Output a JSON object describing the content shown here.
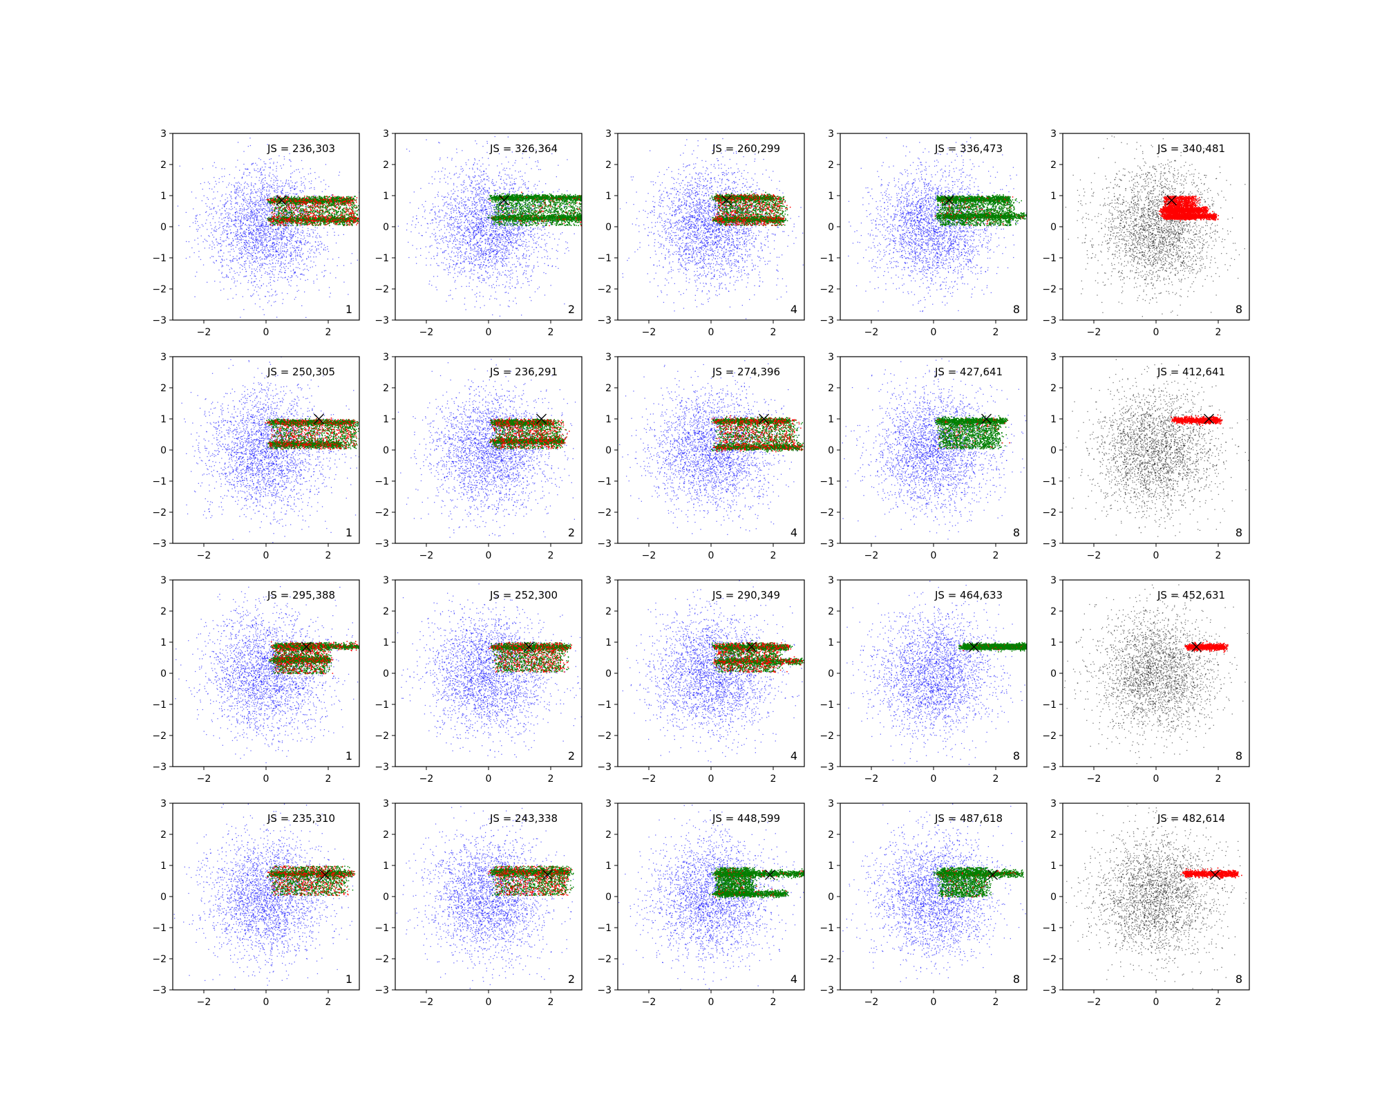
{
  "figure": {
    "background": "#ffffff"
  },
  "styles": {
    "background_colors": {
      "blue": "#0000ff",
      "black": "#000000"
    },
    "cluster_colors": {
      "red": "#ff0000",
      "green": "#008000"
    },
    "marker_color": "#000000"
  },
  "chart_data": [
    {
      "type": "scatter",
      "panel": [
        1,
        1
      ],
      "annotation": "JS = 236,303",
      "corner_label": "1",
      "background_color": "blue",
      "marker": {
        "x": 0.5,
        "y": 0.85
      },
      "clusters": {
        "x_start": 0.1,
        "y_band": [
          0.05,
          1.0
        ],
        "x_end": 2.8,
        "bands": [
          {
            "y": 0.85,
            "x_end": 2.7
          },
          {
            "y": 0.25,
            "x_end": 2.9
          }
        ],
        "mix": "both"
      },
      "xlim": [
        -3,
        3
      ],
      "ylim": [
        -3,
        3
      ],
      "xticks": [
        -2,
        0,
        2
      ],
      "yticks": [
        -3,
        -2,
        -1,
        0,
        1,
        2,
        3
      ]
    },
    {
      "type": "scatter",
      "panel": [
        1,
        2
      ],
      "annotation": "JS = 326,364",
      "corner_label": "2",
      "background_color": "blue",
      "marker": {
        "x": 0.5,
        "y": 0.85
      },
      "clusters": {
        "x_start": 0.1,
        "y_band": [
          0.05,
          1.0
        ],
        "x_end": 3.0,
        "bands": [
          {
            "y": 0.95,
            "x_end": 3.0
          },
          {
            "y": 0.3,
            "x_end": 3.0
          }
        ],
        "mix": "green"
      },
      "xlim": [
        -3,
        3
      ],
      "ylim": [
        -3,
        3
      ],
      "xticks": [
        -2,
        0,
        2
      ],
      "yticks": [
        -3,
        -2,
        -1,
        0,
        1,
        2,
        3
      ]
    },
    {
      "type": "scatter",
      "panel": [
        1,
        3
      ],
      "annotation": "JS = 260,299",
      "corner_label": "4",
      "background_color": "blue",
      "marker": {
        "x": 0.5,
        "y": 0.85
      },
      "clusters": {
        "x_start": 0.1,
        "y_band": [
          0.05,
          1.0
        ],
        "x_end": 2.2,
        "bands": [
          {
            "y": 0.95,
            "x_end": 2.0
          },
          {
            "y": 0.25,
            "x_end": 2.3
          }
        ],
        "mix": "both"
      },
      "xlim": [
        -3,
        3
      ],
      "ylim": [
        -3,
        3
      ],
      "xticks": [
        -2,
        0,
        2
      ],
      "yticks": [
        -3,
        -2,
        -1,
        0,
        1,
        2,
        3
      ]
    },
    {
      "type": "scatter",
      "panel": [
        1,
        4
      ],
      "annotation": "JS = 336,473",
      "corner_label": "8",
      "background_color": "blue",
      "marker": {
        "x": 0.5,
        "y": 0.85
      },
      "clusters": {
        "x_start": 0.1,
        "y_band": [
          0.05,
          1.0
        ],
        "x_end": 2.4,
        "bands": [
          {
            "y": 0.9,
            "x_end": 2.4
          },
          {
            "y": 0.35,
            "x_end": 2.9
          }
        ],
        "mix": "green"
      },
      "xlim": [
        -3,
        3
      ],
      "ylim": [
        -3,
        3
      ],
      "xticks": [
        -2,
        0,
        2
      ],
      "yticks": [
        -3,
        -2,
        -1,
        0,
        1,
        2,
        3
      ]
    },
    {
      "type": "scatter",
      "panel": [
        1,
        5
      ],
      "annotation": "JS = 340,481",
      "corner_label": "8",
      "background_color": "black",
      "marker": {
        "x": 0.5,
        "y": 0.85
      },
      "clusters": {
        "x_start": 0.2,
        "y_band": [
          0.25,
          1.0
        ],
        "x_end": 1.1,
        "bands": [
          {
            "y": 0.55,
            "x_end": 1.6
          },
          {
            "y": 0.35,
            "x_end": 1.9
          }
        ],
        "mix": "red"
      },
      "xlim": [
        -3,
        3
      ],
      "ylim": [
        -3,
        3
      ],
      "xticks": [
        -2,
        0,
        2
      ],
      "yticks": [
        -3,
        -2,
        -1,
        0,
        1,
        2,
        3
      ]
    },
    {
      "type": "scatter",
      "panel": [
        2,
        1
      ],
      "annotation": "JS = 250,305",
      "corner_label": "1",
      "background_color": "blue",
      "marker": {
        "x": 1.7,
        "y": 1.0
      },
      "clusters": {
        "x_start": 0.1,
        "y_band": [
          0.05,
          1.0
        ],
        "x_end": 2.8,
        "bands": [
          {
            "y": 0.9,
            "x_end": 2.8
          },
          {
            "y": 0.2,
            "x_end": 2.4
          }
        ],
        "mix": "both"
      },
      "xlim": [
        -3,
        3
      ],
      "ylim": [
        -3,
        3
      ],
      "xticks": [
        -2,
        0,
        2
      ],
      "yticks": [
        -3,
        -2,
        -1,
        0,
        1,
        2,
        3
      ]
    },
    {
      "type": "scatter",
      "panel": [
        2,
        2
      ],
      "annotation": "JS = 236,291",
      "corner_label": "2",
      "background_color": "blue",
      "marker": {
        "x": 1.7,
        "y": 1.0
      },
      "clusters": {
        "x_start": 0.1,
        "y_band": [
          0.05,
          1.0
        ],
        "x_end": 2.2,
        "bands": [
          {
            "y": 0.9,
            "x_end": 2.0
          },
          {
            "y": 0.3,
            "x_end": 2.4
          }
        ],
        "mix": "both"
      },
      "xlim": [
        -3,
        3
      ],
      "ylim": [
        -3,
        3
      ],
      "xticks": [
        -2,
        0,
        2
      ],
      "yticks": [
        -3,
        -2,
        -1,
        0,
        1,
        2,
        3
      ]
    },
    {
      "type": "scatter",
      "panel": [
        2,
        3
      ],
      "annotation": "JS = 274,396",
      "corner_label": "4",
      "background_color": "blue",
      "marker": {
        "x": 1.7,
        "y": 1.0
      },
      "clusters": {
        "x_start": 0.1,
        "y_band": [
          0.05,
          1.0
        ],
        "x_end": 2.6,
        "bands": [
          {
            "y": 0.95,
            "x_end": 2.5
          },
          {
            "y": 0.1,
            "x_end": 2.9
          }
        ],
        "mix": "both"
      },
      "xlim": [
        -3,
        3
      ],
      "ylim": [
        -3,
        3
      ],
      "xticks": [
        -2,
        0,
        2
      ],
      "yticks": [
        -3,
        -2,
        -1,
        0,
        1,
        2,
        3
      ]
    },
    {
      "type": "scatter",
      "panel": [
        2,
        4
      ],
      "annotation": "JS = 427,641",
      "corner_label": "8",
      "background_color": "blue",
      "marker": {
        "x": 1.7,
        "y": 1.0
      },
      "clusters": {
        "x_start": 0.1,
        "y_band": [
          0.05,
          1.0
        ],
        "x_end": 2.0,
        "bands": [
          {
            "y": 0.95,
            "x_end": 2.3
          }
        ],
        "mix": "green"
      },
      "xlim": [
        -3,
        3
      ],
      "ylim": [
        -3,
        3
      ],
      "xticks": [
        -2,
        0,
        2
      ],
      "yticks": [
        -3,
        -2,
        -1,
        0,
        1,
        2,
        3
      ]
    },
    {
      "type": "scatter",
      "panel": [
        2,
        5
      ],
      "annotation": "JS = 412,641",
      "corner_label": "8",
      "background_color": "black",
      "marker": {
        "x": 1.7,
        "y": 1.0
      },
      "clusters": {
        "x_start": 0.6,
        "y_band": [
          0.95,
          1.0
        ],
        "x_end": 0.6,
        "bands": [
          {
            "y": 0.97,
            "x_end": 2.0
          }
        ],
        "mix": "red"
      },
      "xlim": [
        -3,
        3
      ],
      "ylim": [
        -3,
        3
      ],
      "xticks": [
        -2,
        0,
        2
      ],
      "yticks": [
        -3,
        -2,
        -1,
        0,
        1,
        2,
        3
      ]
    },
    {
      "type": "scatter",
      "panel": [
        3,
        1
      ],
      "annotation": "JS = 295,388",
      "corner_label": "1",
      "background_color": "blue",
      "marker": {
        "x": 1.3,
        "y": 0.85
      },
      "clusters": {
        "x_start": 0.2,
        "y_band": [
          0.0,
          1.0
        ],
        "x_end": 1.8,
        "bands": [
          {
            "y": 0.88,
            "x_end": 3.0
          },
          {
            "y": 0.45,
            "x_end": 2.0
          }
        ],
        "mix": "both"
      },
      "xlim": [
        -3,
        3
      ],
      "ylim": [
        -3,
        3
      ],
      "xticks": [
        -2,
        0,
        2
      ],
      "yticks": [
        -3,
        -2,
        -1,
        0,
        1,
        2,
        3
      ]
    },
    {
      "type": "scatter",
      "panel": [
        3,
        2
      ],
      "annotation": "JS = 252,300",
      "corner_label": "2",
      "background_color": "blue",
      "marker": {
        "x": 1.3,
        "y": 0.85
      },
      "clusters": {
        "x_start": 0.1,
        "y_band": [
          0.05,
          1.0
        ],
        "x_end": 2.3,
        "bands": [
          {
            "y": 0.85,
            "x_end": 2.6
          }
        ],
        "mix": "both"
      },
      "xlim": [
        -3,
        3
      ],
      "ylim": [
        -3,
        3
      ],
      "xticks": [
        -2,
        0,
        2
      ],
      "yticks": [
        -3,
        -2,
        -1,
        0,
        1,
        2,
        3
      ]
    },
    {
      "type": "scatter",
      "panel": [
        3,
        3
      ],
      "annotation": "JS = 290,349",
      "corner_label": "4",
      "background_color": "blue",
      "marker": {
        "x": 1.3,
        "y": 0.85
      },
      "clusters": {
        "x_start": 0.1,
        "y_band": [
          0.05,
          1.0
        ],
        "x_end": 2.0,
        "bands": [
          {
            "y": 0.85,
            "x_end": 2.5
          },
          {
            "y": 0.4,
            "x_end": 2.9
          }
        ],
        "mix": "both"
      },
      "xlim": [
        -3,
        3
      ],
      "ylim": [
        -3,
        3
      ],
      "xticks": [
        -2,
        0,
        2
      ],
      "yticks": [
        -3,
        -2,
        -1,
        0,
        1,
        2,
        3
      ]
    },
    {
      "type": "scatter",
      "panel": [
        3,
        4
      ],
      "annotation": "JS = 464,633",
      "corner_label": "8",
      "background_color": "blue",
      "marker": {
        "x": 1.3,
        "y": 0.85
      },
      "clusters": {
        "x_start": 0.9,
        "y_band": [
          0.78,
          0.95
        ],
        "x_end": 3.0,
        "bands": [
          {
            "y": 0.87,
            "x_end": 3.0
          }
        ],
        "mix": "green"
      },
      "xlim": [
        -3,
        3
      ],
      "ylim": [
        -3,
        3
      ],
      "xticks": [
        -2,
        0,
        2
      ],
      "yticks": [
        -3,
        -2,
        -1,
        0,
        1,
        2,
        3
      ]
    },
    {
      "type": "scatter",
      "panel": [
        3,
        5
      ],
      "annotation": "JS = 452,631",
      "corner_label": "8",
      "background_color": "black",
      "marker": {
        "x": 1.3,
        "y": 0.85
      },
      "clusters": {
        "x_start": 1.0,
        "y_band": [
          0.8,
          0.92
        ],
        "x_end": 1.0,
        "bands": [
          {
            "y": 0.86,
            "x_end": 2.2
          }
        ],
        "mix": "red"
      },
      "xlim": [
        -3,
        3
      ],
      "ylim": [
        -3,
        3
      ],
      "xticks": [
        -2,
        0,
        2
      ],
      "yticks": [
        -3,
        -2,
        -1,
        0,
        1,
        2,
        3
      ]
    },
    {
      "type": "scatter",
      "panel": [
        4,
        1
      ],
      "annotation": "JS = 235,310",
      "corner_label": "1",
      "background_color": "blue",
      "marker": {
        "x": 1.9,
        "y": 0.7
      },
      "clusters": {
        "x_start": 0.1,
        "y_band": [
          0.05,
          1.0
        ],
        "x_end": 2.4,
        "bands": [
          {
            "y": 0.75,
            "x_end": 2.8
          }
        ],
        "mix": "both"
      },
      "xlim": [
        -3,
        3
      ],
      "ylim": [
        -3,
        3
      ],
      "xticks": [
        -2,
        0,
        2
      ],
      "yticks": [
        -3,
        -2,
        -1,
        0,
        1,
        2,
        3
      ]
    },
    {
      "type": "scatter",
      "panel": [
        4,
        2
      ],
      "annotation": "JS = 243,338",
      "corner_label": "2",
      "background_color": "blue",
      "marker": {
        "x": 1.9,
        "y": 0.7
      },
      "clusters": {
        "x_start": 0.1,
        "y_band": [
          0.05,
          1.0
        ],
        "x_end": 2.4,
        "bands": [
          {
            "y": 0.8,
            "x_end": 2.6
          }
        ],
        "mix": "both"
      },
      "xlim": [
        -3,
        3
      ],
      "ylim": [
        -3,
        3
      ],
      "xticks": [
        -2,
        0,
        2
      ],
      "yticks": [
        -3,
        -2,
        -1,
        0,
        1,
        2,
        3
      ]
    },
    {
      "type": "scatter",
      "panel": [
        4,
        3
      ],
      "annotation": "JS = 448,599",
      "corner_label": "4",
      "background_color": "blue",
      "marker": {
        "x": 1.9,
        "y": 0.7
      },
      "clusters": {
        "x_start": 0.1,
        "y_band": [
          0.05,
          0.95
        ],
        "x_end": 1.2,
        "bands": [
          {
            "y": 0.75,
            "x_end": 3.0
          },
          {
            "y": 0.1,
            "x_end": 2.4
          }
        ],
        "mix": "green"
      },
      "xlim": [
        -3,
        3
      ],
      "ylim": [
        -3,
        3
      ],
      "xticks": [
        -2,
        0,
        2
      ],
      "yticks": [
        -3,
        -2,
        -1,
        0,
        1,
        2,
        3
      ]
    },
    {
      "type": "scatter",
      "panel": [
        4,
        4
      ],
      "annotation": "JS = 487,618",
      "corner_label": "8",
      "background_color": "blue",
      "marker": {
        "x": 1.9,
        "y": 0.7
      },
      "clusters": {
        "x_start": 0.1,
        "y_band": [
          0.0,
          0.95
        ],
        "x_end": 1.6,
        "bands": [
          {
            "y": 0.75,
            "x_end": 2.8
          }
        ],
        "mix": "green"
      },
      "xlim": [
        -3,
        3
      ],
      "ylim": [
        -3,
        3
      ],
      "xticks": [
        -2,
        0,
        2
      ],
      "yticks": [
        -3,
        -2,
        -1,
        0,
        1,
        2,
        3
      ]
    },
    {
      "type": "scatter",
      "panel": [
        4,
        5
      ],
      "annotation": "JS = 482,614",
      "corner_label": "8",
      "background_color": "black",
      "marker": {
        "x": 1.9,
        "y": 0.7
      },
      "clusters": {
        "x_start": 0.9,
        "y_band": [
          0.7,
          0.8
        ],
        "x_end": 0.9,
        "bands": [
          {
            "y": 0.75,
            "x_end": 2.6
          }
        ],
        "mix": "red"
      },
      "xlim": [
        -3,
        3
      ],
      "ylim": [
        -3,
        3
      ],
      "xticks": [
        -2,
        0,
        2
      ],
      "yticks": [
        -3,
        -2,
        -1,
        0,
        1,
        2,
        3
      ]
    }
  ]
}
